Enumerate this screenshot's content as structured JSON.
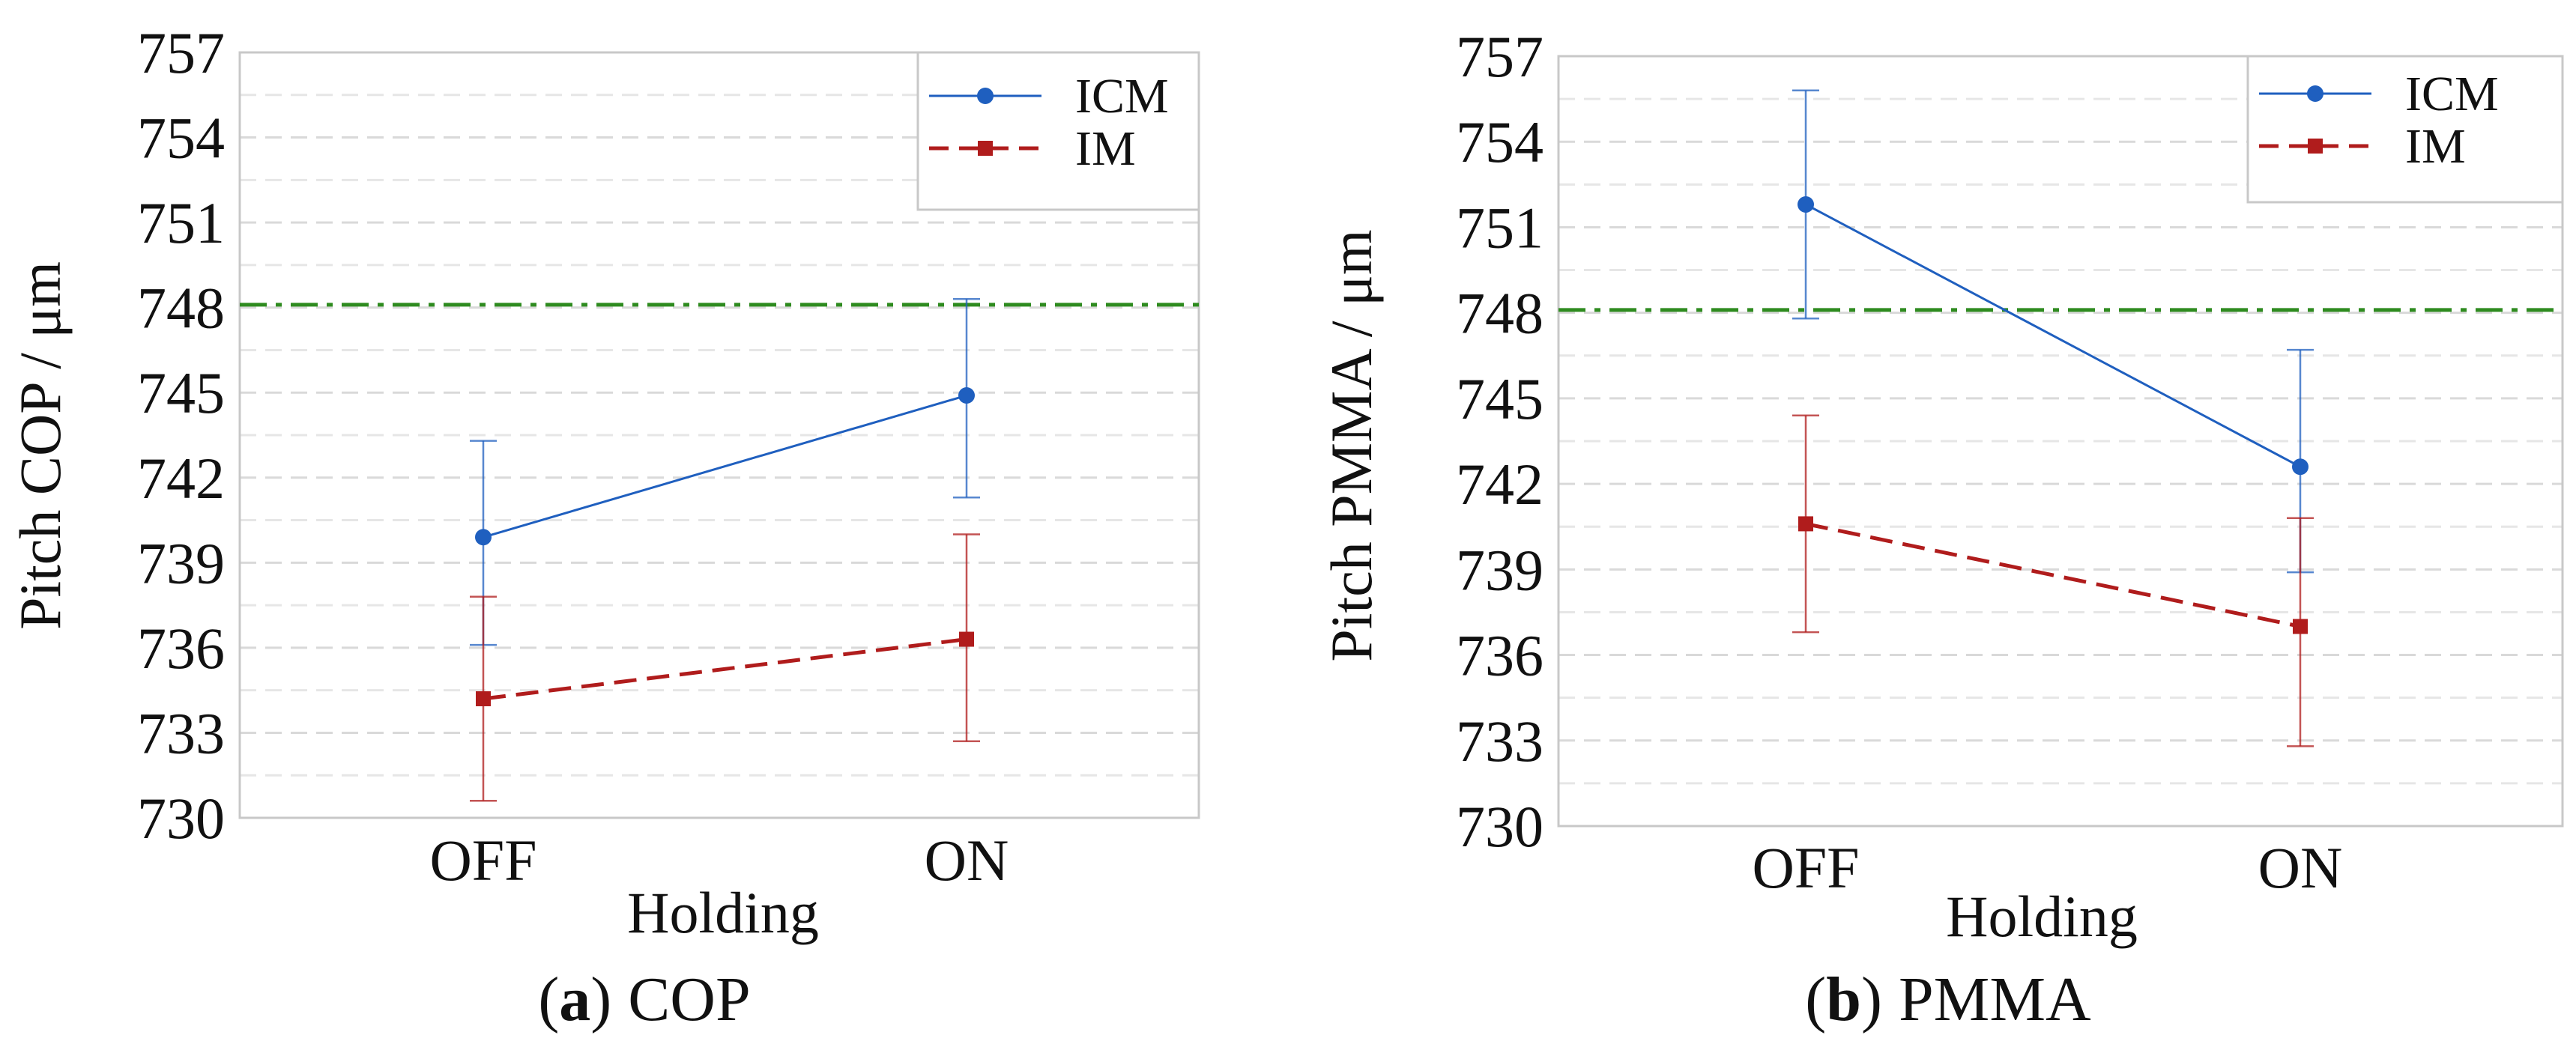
{
  "colors": {
    "icm": "#1f5fbf",
    "im": "#b01c1c",
    "reference": "#2e8b1f",
    "grid": "#d9d9d9",
    "frame": "#c8c8c8"
  },
  "panels": [
    {
      "caption_letter": "a",
      "caption_text": "COP",
      "ylabel": "Pitch COP / μm",
      "xlabel": "Holding"
    },
    {
      "caption_letter": "b",
      "caption_text": "PMMA",
      "ylabel": "Pitch PMMA / μm",
      "xlabel": "Holding"
    }
  ],
  "chart_data": [
    {
      "type": "line",
      "title": "",
      "xlabel": "Holding",
      "ylabel": "Pitch COP / μm",
      "categories": [
        "OFF",
        "ON"
      ],
      "ylim": [
        730,
        757
      ],
      "yticks": [
        730,
        733,
        736,
        739,
        742,
        745,
        748,
        751,
        754,
        757
      ],
      "grid": "horizontal dashed",
      "legend_position": "top-right",
      "reference_line": {
        "y": 748.1,
        "style": "dash-dot",
        "color": "#2e8b1f"
      },
      "series": [
        {
          "name": "ICM",
          "marker": "circle",
          "line_style": "solid",
          "color": "#1f5fbf",
          "values": [
            739.9,
            744.9
          ],
          "error_low": [
            736.1,
            741.3
          ],
          "error_high": [
            743.3,
            748.3
          ]
        },
        {
          "name": "IM",
          "marker": "square",
          "line_style": "dashed",
          "color": "#b01c1c",
          "values": [
            734.2,
            736.3
          ],
          "error_low": [
            730.6,
            732.7
          ],
          "error_high": [
            737.8,
            740.0
          ]
        }
      ]
    },
    {
      "type": "line",
      "title": "",
      "xlabel": "Holding",
      "ylabel": "Pitch PMMA / μm",
      "categories": [
        "OFF",
        "ON"
      ],
      "ylim": [
        730,
        757
      ],
      "yticks": [
        730,
        733,
        736,
        739,
        742,
        745,
        748,
        751,
        754,
        757
      ],
      "grid": "horizontal dashed",
      "legend_position": "top-right",
      "reference_line": {
        "y": 748.1,
        "style": "dash-dot",
        "color": "#2e8b1f"
      },
      "series": [
        {
          "name": "ICM",
          "marker": "circle",
          "line_style": "solid",
          "color": "#1f5fbf",
          "values": [
            751.8,
            742.6
          ],
          "error_low": [
            747.8,
            738.9
          ],
          "error_high": [
            755.8,
            746.7
          ]
        },
        {
          "name": "IM",
          "marker": "square",
          "line_style": "dashed",
          "color": "#b01c1c",
          "values": [
            740.6,
            737.0
          ],
          "error_low": [
            736.8,
            732.8
          ],
          "error_high": [
            744.4,
            740.8
          ]
        }
      ]
    }
  ]
}
